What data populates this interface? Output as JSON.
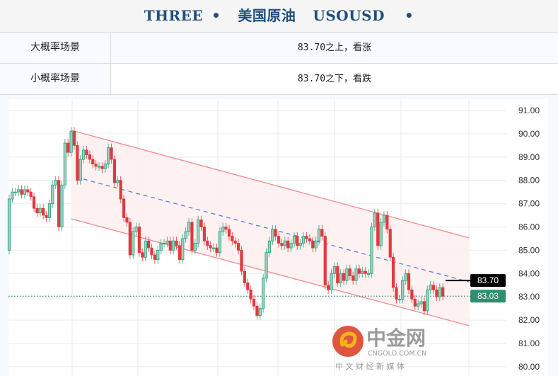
{
  "header": {
    "title_parts": [
      "THREE",
      "•",
      "美国原油",
      "USOUSD",
      "•"
    ]
  },
  "scenarios": [
    {
      "label": "大概率场景",
      "value": "83.70之上，看涨"
    },
    {
      "label": "小概率场景",
      "value": "83.70之下，看跌"
    }
  ],
  "watermark": {
    "name": "中金网",
    "domain": "CNGOLD.COM.CN",
    "tagline": "中 文 财 经 新 媒 体"
  },
  "colors": {
    "up": "#26a17b",
    "down": "#e03a3e",
    "channel": "#f08a8f",
    "channel_fill": "#fdeff0",
    "midline": "#5b7cf5",
    "last_price": "#2f8f6f"
  },
  "chart_data": {
    "type": "candlestick",
    "ylim": [
      80,
      91
    ],
    "y_ticks": [
      "91.00",
      "90.00",
      "89.00",
      "88.00",
      "87.00",
      "86.00",
      "85.00",
      "84.00",
      "83.00",
      "82.00",
      "81.00",
      "80.00"
    ],
    "grid": true,
    "open": [
      85.0,
      87.2,
      87.5,
      87.5,
      87.6,
      87.4,
      87.6,
      87.5,
      87.3,
      86.8,
      86.6,
      86.8,
      86.5,
      86.4,
      87.0,
      87.8,
      88.0,
      86.0,
      87.8,
      89.6,
      89.2,
      90.1,
      89.5,
      88.0,
      88.9,
      89.3,
      89.1,
      88.9,
      88.7,
      88.6,
      88.6,
      88.5,
      88.7,
      89.4,
      88.9,
      87.9,
      88.0,
      87.2,
      86.4,
      86.2,
      84.8,
      85.8,
      86.0,
      84.9,
      84.7,
      85.4,
      85.1,
      84.8,
      84.6,
      85.0,
      85.3,
      85.3,
      85.4,
      85.0,
      85.4,
      85.2,
      84.6,
      85.5,
      85.8,
      86.2,
      85.0,
      85.3,
      86.3,
      86.0,
      85.4,
      85.2,
      85.1,
      85.1,
      84.9,
      85.8,
      86.0,
      85.9,
      85.6,
      85.4,
      85.3,
      85.0,
      84.1,
      83.6,
      83.3,
      82.9,
      82.6,
      82.2,
      82.5,
      83.8,
      84.9,
      85.4,
      85.9,
      85.6,
      85.3,
      85.2,
      85.4,
      85.1,
      85.3,
      85.6,
      85.2,
      85.3,
      85.6,
      85.5,
      85.4,
      85.1,
      85.4,
      85.9,
      85.6,
      83.5,
      83.3,
      84.0,
      84.3,
      83.6,
      84.0,
      83.7,
      84.2,
      83.9,
      83.7,
      84.2,
      84.0,
      84.1,
      84.0,
      84.0,
      86.0,
      86.6,
      85.2,
      86.2,
      86.5,
      85.9,
      84.7,
      83.4,
      82.9,
      82.9,
      83.7,
      84.0,
      83.3,
      82.9,
      82.6,
      82.7,
      82.8,
      82.4,
      83.3,
      83.5,
      83.3,
      83.0,
      83.4
    ],
    "close": [
      87.2,
      87.5,
      87.5,
      87.6,
      87.4,
      87.6,
      87.5,
      87.3,
      86.8,
      86.6,
      86.8,
      86.5,
      86.4,
      87.0,
      87.8,
      88.0,
      86.0,
      87.8,
      89.6,
      89.2,
      90.1,
      89.5,
      88.0,
      88.9,
      89.3,
      89.1,
      88.9,
      88.7,
      88.6,
      88.6,
      88.5,
      88.7,
      89.4,
      88.9,
      87.9,
      88.0,
      87.2,
      86.4,
      86.2,
      84.8,
      85.8,
      86.0,
      84.9,
      84.7,
      85.4,
      85.1,
      84.8,
      84.6,
      85.0,
      85.3,
      85.3,
      85.4,
      85.0,
      85.4,
      85.2,
      84.6,
      85.5,
      85.8,
      86.2,
      85.0,
      85.3,
      86.3,
      86.0,
      85.4,
      85.2,
      85.1,
      85.1,
      84.9,
      85.8,
      86.0,
      85.9,
      85.6,
      85.4,
      85.3,
      85.0,
      84.1,
      83.6,
      83.3,
      82.9,
      82.6,
      82.2,
      82.5,
      83.8,
      84.9,
      85.4,
      85.9,
      85.6,
      85.3,
      85.2,
      85.4,
      85.1,
      85.3,
      85.6,
      85.2,
      85.3,
      85.6,
      85.5,
      85.4,
      85.1,
      85.4,
      85.9,
      85.6,
      83.5,
      83.3,
      84.0,
      84.3,
      83.6,
      84.0,
      83.7,
      84.2,
      83.9,
      83.7,
      84.2,
      84.0,
      84.1,
      84.0,
      84.0,
      86.0,
      86.6,
      85.2,
      86.2,
      86.5,
      85.9,
      84.7,
      83.4,
      82.9,
      82.9,
      83.7,
      84.0,
      83.3,
      82.9,
      82.6,
      82.7,
      82.8,
      82.4,
      83.3,
      83.5,
      83.3,
      83.0,
      83.4,
      83.03
    ],
    "channel": {
      "upper": [
        90.15,
        85.53
      ],
      "middle": [
        88.14,
        83.64
      ],
      "lower": [
        86.35,
        81.76
      ]
    },
    "key_level": {
      "label": "83.70",
      "value": 83.7
    },
    "last_price": {
      "label": "83.03",
      "value": 83.03
    }
  }
}
